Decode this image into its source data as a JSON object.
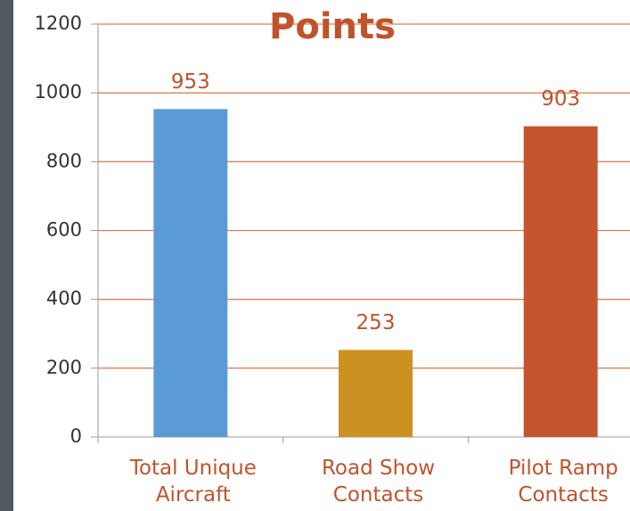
{
  "chart_data": {
    "type": "bar",
    "title": "Points",
    "categories": [
      "Total Unique Aircraft",
      "Road Show Contacts",
      "Pilot Ramp Contacts"
    ],
    "values": [
      953,
      253,
      903
    ],
    "colors": [
      "#5b9bd5",
      "#cc9221",
      "#c5552e"
    ],
    "ylim": [
      0,
      1200
    ],
    "yticks": [
      0,
      200,
      400,
      600,
      800,
      1000,
      1200
    ],
    "grid": true,
    "data_labels": true
  }
}
